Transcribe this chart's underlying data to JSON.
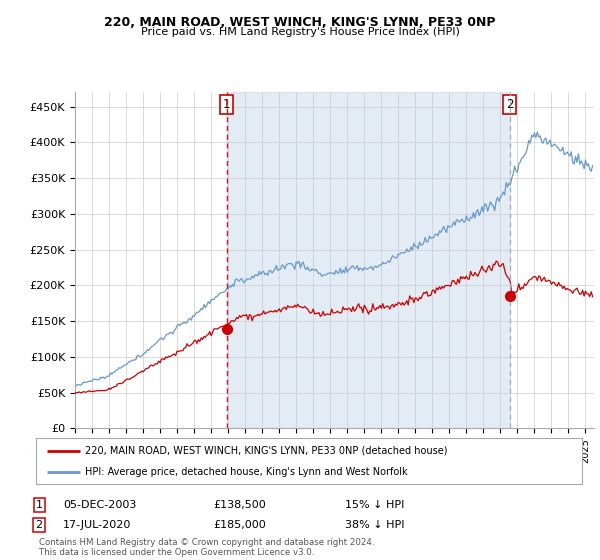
{
  "title1": "220, MAIN ROAD, WEST WINCH, KING'S LYNN, PE33 0NP",
  "title2": "Price paid vs. HM Land Registry's House Price Index (HPI)",
  "ylabel_ticks": [
    "£0",
    "£50K",
    "£100K",
    "£150K",
    "£200K",
    "£250K",
    "£300K",
    "£350K",
    "£400K",
    "£450K"
  ],
  "ytick_values": [
    0,
    50000,
    100000,
    150000,
    200000,
    250000,
    300000,
    350000,
    400000,
    450000
  ],
  "ylim": [
    0,
    470000
  ],
  "xlim_start": 1995.0,
  "xlim_end": 2025.5,
  "sale1_x": 2003.92,
  "sale1_y": 138500,
  "sale2_x": 2020.54,
  "sale2_y": 185000,
  "property_color": "#cc0000",
  "hpi_color": "#6699cc",
  "vline1_color": "#ff0000",
  "vline2_color": "#aaaaaa",
  "shade_color": "#ddeeff",
  "background_color": "#ffffff",
  "legend_label1": "220, MAIN ROAD, WEST WINCH, KING'S LYNN, PE33 0NP (detached house)",
  "legend_label2": "HPI: Average price, detached house, King's Lynn and West Norfolk",
  "sale1_date": "05-DEC-2003",
  "sale1_price": "£138,500",
  "sale1_hpi": "15% ↓ HPI",
  "sale2_date": "17-JUL-2020",
  "sale2_price": "£185,000",
  "sale2_hpi": "38% ↓ HPI",
  "footer": "Contains HM Land Registry data © Crown copyright and database right 2024.\nThis data is licensed under the Open Government Licence v3.0."
}
